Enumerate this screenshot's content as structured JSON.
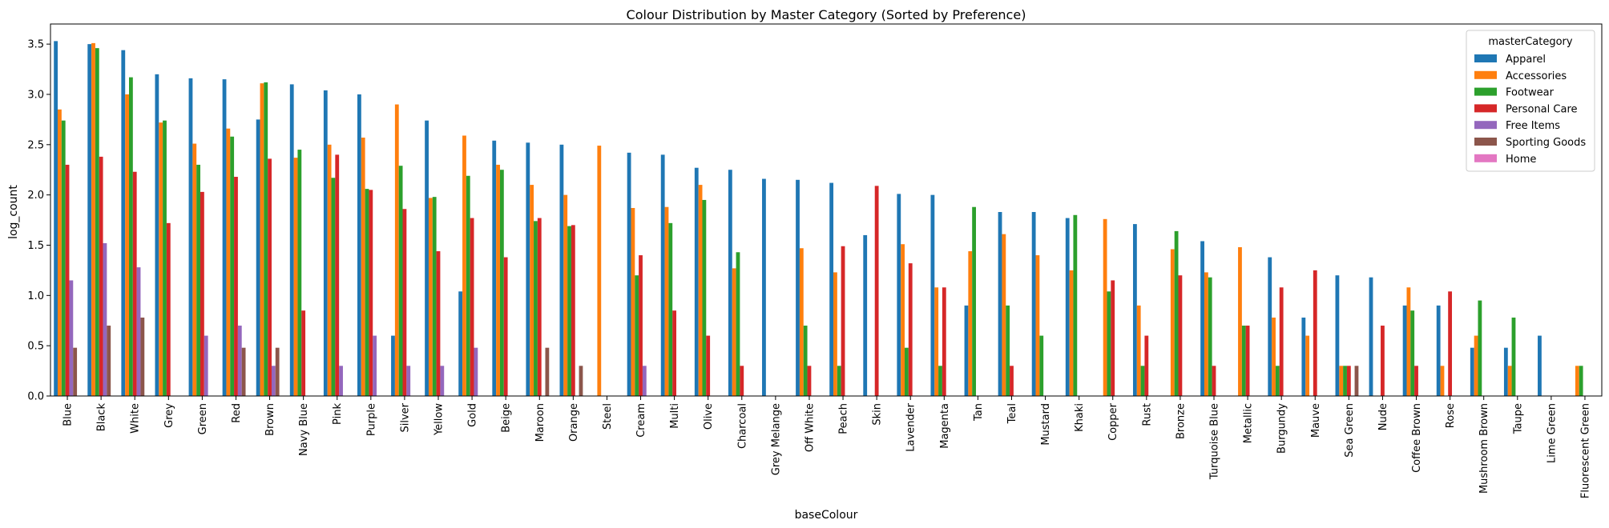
{
  "chart_data": {
    "type": "bar",
    "title": "Colour Distribution by Master Category (Sorted by Preference)",
    "xlabel": "baseColour",
    "ylabel": "log_count",
    "ylim": [
      0,
      3.7
    ],
    "yticks": [
      "0.0",
      "0.5",
      "1.0",
      "1.5",
      "2.0",
      "2.5",
      "3.0",
      "3.5"
    ],
    "grid": false,
    "legend_title": "masterCategory",
    "legend_position": "top-right",
    "categories": [
      "Blue",
      "Black",
      "White",
      "Grey",
      "Green",
      "Red",
      "Brown",
      "Navy Blue",
      "Pink",
      "Purple",
      "Silver",
      "Yellow",
      "Gold",
      "Beige",
      "Maroon",
      "Orange",
      "Steel",
      "Cream",
      "Multi",
      "Olive",
      "Charcoal",
      "Grey Melange",
      "Off White",
      "Peach",
      "Skin",
      "Lavender",
      "Magenta",
      "Tan",
      "Teal",
      "Mustard",
      "Khaki",
      "Copper",
      "Rust",
      "Bronze",
      "Turquoise Blue",
      "Metallic",
      "Burgundy",
      "Mauve",
      "Sea Green",
      "Nude",
      "Coffee Brown",
      "Rose",
      "Mushroom Brown",
      "Taupe",
      "Lime Green",
      "Fluorescent Green"
    ],
    "series": [
      {
        "name": "Apparel",
        "color": "#1f77b4",
        "values": [
          3.53,
          3.5,
          3.44,
          3.2,
          3.16,
          3.15,
          2.75,
          3.1,
          3.04,
          3.0,
          0.6,
          2.74,
          1.04,
          2.54,
          2.52,
          2.5,
          null,
          2.42,
          2.4,
          2.27,
          2.25,
          2.16,
          2.15,
          2.12,
          1.6,
          2.01,
          2.0,
          0.9,
          1.83,
          1.83,
          1.77,
          null,
          1.71,
          null,
          1.54,
          null,
          1.38,
          0.78,
          1.2,
          1.18,
          0.9,
          0.9,
          0.48,
          0.48,
          0.6,
          null
        ]
      },
      {
        "name": "Accessories",
        "color": "#ff7f0e",
        "values": [
          2.85,
          3.51,
          3.0,
          2.72,
          2.51,
          2.66,
          3.11,
          2.37,
          2.5,
          2.57,
          2.9,
          1.97,
          2.59,
          2.3,
          2.1,
          2.0,
          2.49,
          1.87,
          1.88,
          2.1,
          1.27,
          null,
          1.47,
          1.23,
          null,
          1.51,
          1.08,
          1.44,
          1.61,
          1.4,
          1.25,
          1.76,
          0.9,
          1.46,
          1.23,
          1.48,
          0.78,
          0.6,
          0.3,
          null,
          1.08,
          0.3,
          0.6,
          0.3,
          null,
          0.3
        ]
      },
      {
        "name": "Footwear",
        "color": "#2ca02c",
        "values": [
          2.74,
          3.46,
          3.17,
          2.74,
          2.3,
          2.58,
          3.12,
          2.45,
          2.17,
          2.06,
          2.29,
          1.98,
          2.19,
          2.25,
          1.74,
          1.69,
          null,
          1.2,
          1.72,
          1.95,
          1.43,
          null,
          0.7,
          0.3,
          null,
          0.48,
          0.3,
          1.88,
          0.9,
          0.6,
          1.8,
          1.04,
          0.3,
          1.64,
          1.18,
          0.7,
          0.3,
          null,
          0.3,
          null,
          0.85,
          null,
          0.95,
          0.78,
          null,
          0.3
        ]
      },
      {
        "name": "Personal Care",
        "color": "#d62728",
        "values": [
          2.3,
          2.38,
          2.23,
          1.72,
          2.03,
          2.18,
          2.36,
          0.85,
          2.4,
          2.05,
          1.86,
          1.44,
          1.77,
          1.38,
          1.77,
          1.7,
          null,
          1.4,
          0.85,
          0.6,
          0.3,
          null,
          0.3,
          1.49,
          2.09,
          1.32,
          1.08,
          null,
          0.3,
          null,
          null,
          1.15,
          0.6,
          1.2,
          0.3,
          0.7,
          1.08,
          1.25,
          0.3,
          0.7,
          0.3,
          1.04,
          null,
          null,
          null,
          null
        ]
      },
      {
        "name": "Free Items",
        "color": "#9467bd",
        "values": [
          1.15,
          1.52,
          1.28,
          null,
          0.6,
          0.7,
          0.3,
          null,
          0.3,
          0.6,
          0.3,
          0.3,
          0.48,
          null,
          null,
          null,
          null,
          0.3,
          null,
          null,
          null,
          null,
          null,
          null,
          null,
          null,
          null,
          null,
          null,
          null,
          null,
          null,
          null,
          null,
          null,
          null,
          null,
          null,
          null,
          null,
          null,
          null,
          null,
          null,
          null,
          null
        ]
      },
      {
        "name": "Sporting Goods",
        "color": "#8c564b",
        "values": [
          0.48,
          0.7,
          0.78,
          null,
          null,
          0.48,
          0.48,
          null,
          null,
          null,
          null,
          null,
          null,
          null,
          0.48,
          0.3,
          null,
          null,
          null,
          null,
          null,
          null,
          null,
          null,
          null,
          null,
          null,
          null,
          null,
          null,
          null,
          null,
          null,
          null,
          null,
          null,
          null,
          null,
          0.3,
          null,
          null,
          null,
          null,
          null,
          null,
          null
        ]
      },
      {
        "name": "Home",
        "color": "#e377c2",
        "values": [
          null,
          null,
          null,
          null,
          null,
          null,
          null,
          null,
          null,
          null,
          null,
          null,
          null,
          null,
          null,
          null,
          null,
          null,
          null,
          null,
          null,
          null,
          null,
          null,
          null,
          null,
          null,
          null,
          null,
          null,
          null,
          null,
          null,
          null,
          null,
          null,
          null,
          null,
          null,
          null,
          null,
          null,
          null,
          null,
          null,
          null
        ]
      }
    ]
  }
}
